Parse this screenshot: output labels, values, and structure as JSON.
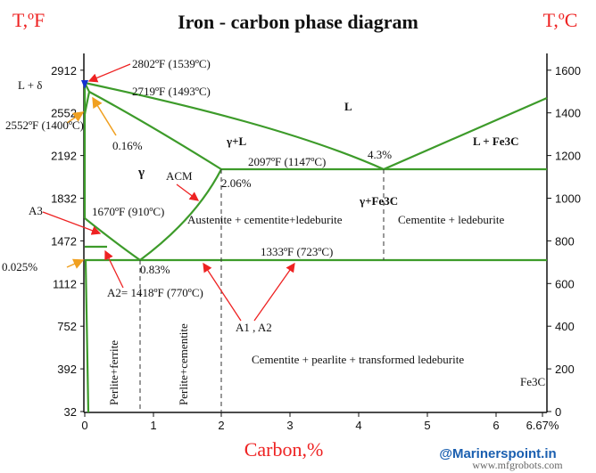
{
  "title": "Iron - carbon phase diagram",
  "left_axis": {
    "unit": "T,ºF",
    "ticks": [
      "32",
      "392",
      "752",
      "1112",
      "1472",
      "1832",
      "2192",
      "2552",
      "2912"
    ]
  },
  "right_axis": {
    "unit": "T,ºC",
    "ticks": [
      "0",
      "200",
      "400",
      "600",
      "800",
      "1000",
      "1200",
      "1400",
      "1600"
    ]
  },
  "x_axis": {
    "label": "Carbon,%",
    "ticks": [
      "0",
      "1",
      "2",
      "3",
      "4",
      "5",
      "6",
      "6.67%"
    ]
  },
  "annotations": {
    "peritectic_top": "2802ºF (1539ºC)",
    "l_delta": "L + δ",
    "peritectic": "2719ºF (1493ºC)",
    "delta_gamma": "2552ºF (1400ºC)",
    "c016": "0.16%",
    "liquid": "L",
    "gamma_l": "γ+L",
    "l_fe3c": "L + Fe3C",
    "eutectic_c": "4.3%",
    "eutectic_t": "2097ºF (1147ºC)",
    "gamma": "γ",
    "acm": "ACM",
    "c206": "2.06%",
    "gamma_fe3c": "γ+Fe3C",
    "a3_t": "1670ºF (910ºC)",
    "a3": "A3",
    "aus_cem_led": "Austenite + cementite+ledeburite",
    "cem_led": "Cementite + ledeburite",
    "eutectoid_t": "1333ºF (723ºC)",
    "c0025": "0.025%",
    "c083": "0.83%",
    "a2": "A2= 1418ºF (770ºC)",
    "a1a2": "A1 , A2",
    "perlite_ferrite": "Perlite+ferrite",
    "perlite_cementite": "Perlite+cementite",
    "cem_pearl": "Cementite + pearlite + transformed ledeburite",
    "fe3c": "Fe3C"
  },
  "watermarks": [
    "@Marinerspoint.in",
    "www.mfgrobots.com"
  ]
}
